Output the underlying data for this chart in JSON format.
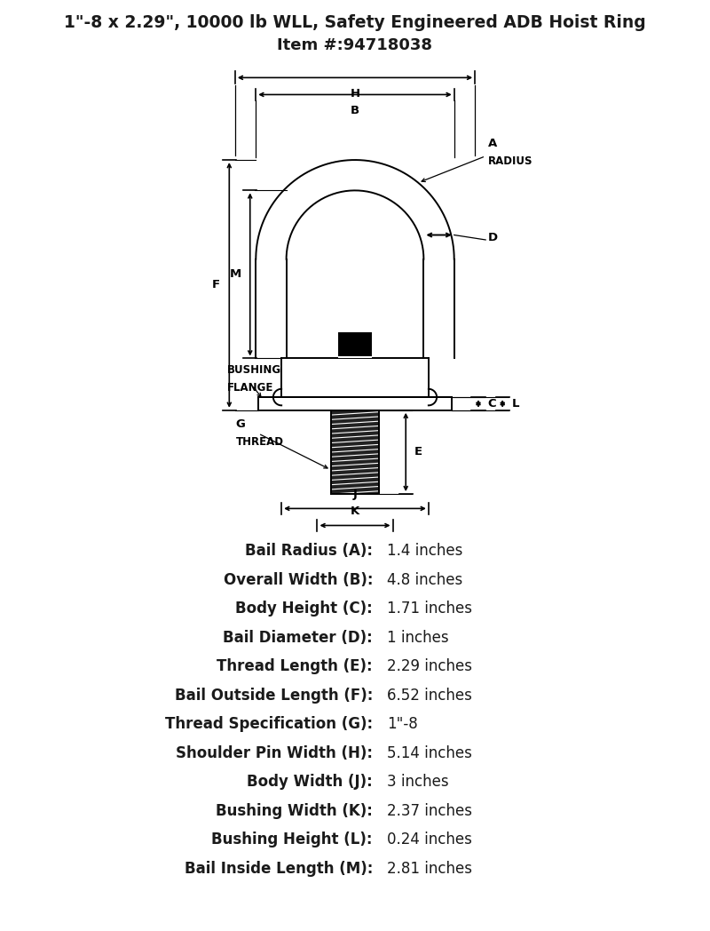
{
  "title_line1": "1\"-8 x 2.29\", 10000 lb WLL, Safety Engineered ADB Hoist Ring",
  "title_line2": "Item #:94718038",
  "bg_color": "#ffffff",
  "specs": [
    [
      "Bail Radius (A):",
      "1.4 inches"
    ],
    [
      "Overall Width (B):",
      "4.8 inches"
    ],
    [
      "Body Height (C):",
      "1.71 inches"
    ],
    [
      "Bail Diameter (D):",
      "1 inches"
    ],
    [
      "Thread Length (E):",
      "2.29 inches"
    ],
    [
      "Bail Outside Length (F):",
      "6.52 inches"
    ],
    [
      "Thread Specification (G):",
      "1\"-8"
    ],
    [
      "Shoulder Pin Width (H):",
      "5.14 inches"
    ],
    [
      "Body Width (J):",
      "3 inches"
    ],
    [
      "Bushing Width (K):",
      "2.37 inches"
    ],
    [
      "Bushing Height (L):",
      "0.24 inches"
    ],
    [
      "Bail Inside Length (M):",
      "2.81 inches"
    ]
  ],
  "text_color": "#1a1a1a",
  "lw": 1.4
}
